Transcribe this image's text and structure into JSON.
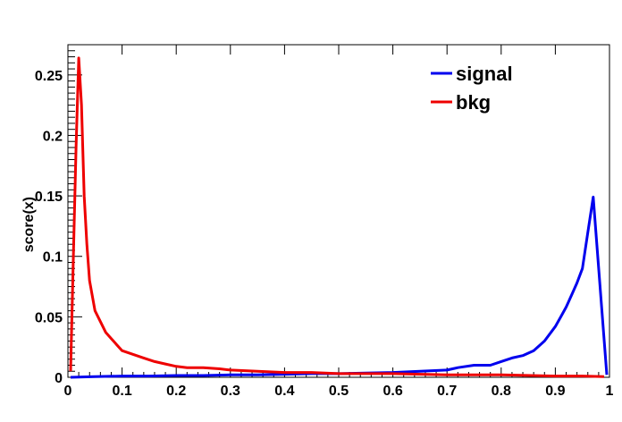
{
  "chart_data": {
    "type": "line",
    "title": "",
    "xlabel": "",
    "ylabel": "score(x)",
    "xlim": [
      0,
      1
    ],
    "ylim": [
      0,
      0.275
    ],
    "grid": false,
    "legend_position": "top-right",
    "x_ticks": [
      "0",
      "0.1",
      "0.2",
      "0.3",
      "0.4",
      "0.5",
      "0.6",
      "0.7",
      "0.8",
      "0.9",
      "1"
    ],
    "y_ticks": [
      "0",
      "0.05",
      "0.1",
      "0.15",
      "0.2",
      "0.25"
    ],
    "series": [
      {
        "name": "signal",
        "color": "#0000ee",
        "x": [
          0.005,
          0.05,
          0.1,
          0.15,
          0.2,
          0.25,
          0.3,
          0.35,
          0.4,
          0.45,
          0.5,
          0.55,
          0.6,
          0.65,
          0.7,
          0.72,
          0.75,
          0.78,
          0.8,
          0.82,
          0.84,
          0.86,
          0.88,
          0.9,
          0.91,
          0.92,
          0.93,
          0.94,
          0.95,
          0.96,
          0.97,
          0.98,
          0.995
        ],
        "y": [
          0.0,
          0.0005,
          0.001,
          0.001,
          0.0015,
          0.0015,
          0.002,
          0.002,
          0.0025,
          0.003,
          0.003,
          0.0035,
          0.004,
          0.005,
          0.006,
          0.008,
          0.01,
          0.01,
          0.013,
          0.016,
          0.018,
          0.022,
          0.03,
          0.042,
          0.05,
          0.058,
          0.068,
          0.078,
          0.09,
          0.12,
          0.149,
          0.09,
          0.002
        ]
      },
      {
        "name": "bkg",
        "color": "#ee0000",
        "x": [
          0.005,
          0.01,
          0.015,
          0.02,
          0.025,
          0.03,
          0.035,
          0.04,
          0.05,
          0.06,
          0.07,
          0.08,
          0.09,
          0.1,
          0.12,
          0.14,
          0.16,
          0.18,
          0.2,
          0.22,
          0.25,
          0.28,
          0.3,
          0.35,
          0.4,
          0.45,
          0.5,
          0.55,
          0.6,
          0.7,
          0.8,
          0.9,
          0.95,
          0.99
        ],
        "y": [
          0.005,
          0.1,
          0.19,
          0.264,
          0.225,
          0.15,
          0.11,
          0.08,
          0.055,
          0.046,
          0.037,
          0.032,
          0.027,
          0.022,
          0.019,
          0.016,
          0.013,
          0.011,
          0.009,
          0.008,
          0.008,
          0.007,
          0.006,
          0.005,
          0.004,
          0.004,
          0.003,
          0.003,
          0.003,
          0.002,
          0.002,
          0.001,
          0.001,
          0.0005
        ]
      }
    ]
  }
}
